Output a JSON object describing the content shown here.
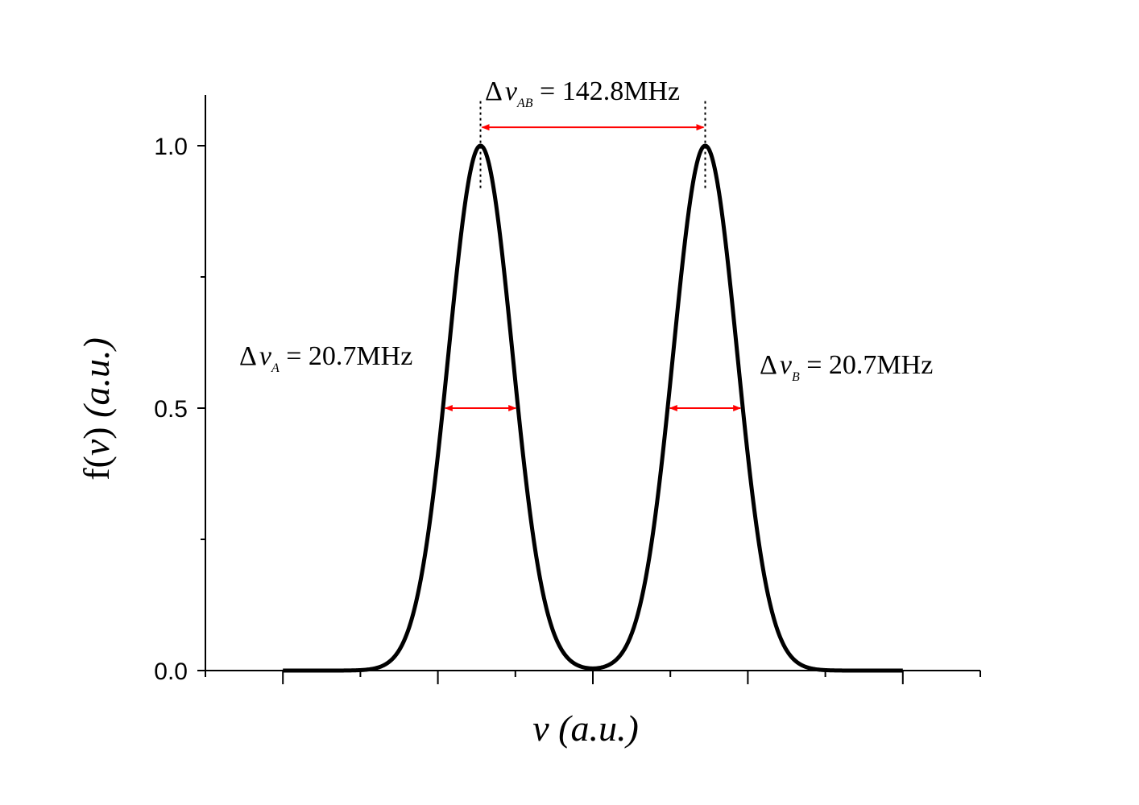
{
  "chart_data": {
    "type": "line",
    "title": "",
    "xlabel": {
      "var": "v",
      "unit": " (a.u.)"
    },
    "ylabel": {
      "func": "f(",
      "var": "v",
      "close": ")",
      "unit": " (a.u.)"
    },
    "xlim": [
      0,
      10
    ],
    "ylim": [
      0,
      1.08
    ],
    "y_ticks": [
      {
        "value": 0.0,
        "label": "0.0"
      },
      {
        "value": 0.5,
        "label": "0.5"
      },
      {
        "value": 1.0,
        "label": "1.0"
      }
    ],
    "y_minor_ticks": [
      0.25,
      0.75
    ],
    "x_ticks_unlabeled": [
      1,
      3,
      5,
      7,
      9
    ],
    "x_minor_ticks": [
      0,
      2,
      4,
      6,
      8,
      10
    ],
    "grid": false,
    "legend": "none",
    "series": [
      {
        "curve": "sum-of-two-gaussians",
        "peaks": [
          {
            "center": 3.55,
            "height": 1.0,
            "fwhm": 0.97
          },
          {
            "center": 6.45,
            "height": 1.0,
            "fwhm": 0.97
          }
        ],
        "x_range": [
          1,
          9
        ],
        "color": "#000000"
      }
    ],
    "annotations": {
      "separation": {
        "delta": "Δ",
        "var": "ν",
        "sub": "AB",
        "text": " = 142.8MHz",
        "arrow_y": 1.035
      },
      "width_a": {
        "delta": "Δ",
        "var": "ν",
        "sub": "A",
        "text": " = 20.7MHz"
      },
      "width_b": {
        "delta": "Δ",
        "var": "ν",
        "sub": "B",
        "text": " = 20.7MHz"
      },
      "arrow_color": "#ff0000"
    }
  }
}
